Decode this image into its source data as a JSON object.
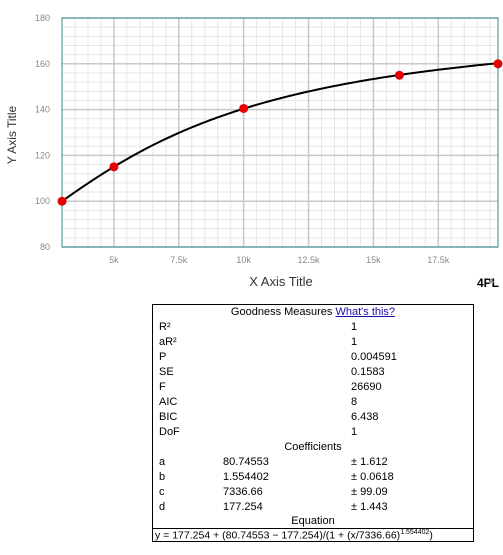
{
  "chart_data": {
    "type": "line",
    "title": "",
    "xlabel": "X Axis Title",
    "ylabel": "Y Axis Title",
    "xlim": [
      3000,
      19800
    ],
    "ylim": [
      80,
      180
    ],
    "xticks": [
      5000,
      7500,
      10000,
      12500,
      15000,
      17500
    ],
    "xtick_labels": [
      "5k",
      "7.5k",
      "10k",
      "12.5k",
      "15k",
      "17.5k"
    ],
    "yticks": [
      80,
      100,
      120,
      140,
      160,
      180
    ],
    "ytick_labels": [
      "80",
      "100",
      "120",
      "140",
      "160",
      "180"
    ],
    "grid": true,
    "model": "4PL",
    "params": {
      "a": 80.74553,
      "b": 1.554402,
      "c": 7336.66,
      "d": 177.254
    },
    "points": [
      {
        "x": 3000,
        "y": 100
      },
      {
        "x": 5000,
        "y": 115
      },
      {
        "x": 10000,
        "y": 140.5
      },
      {
        "x": 16000,
        "y": 155
      },
      {
        "x": 19800,
        "y": 160
      }
    ],
    "colors": {
      "line": "#000000",
      "point": "#e60000",
      "axis": "#2e8b8b",
      "grid_major": "#c8c8c8",
      "grid_minor": "#e6e6e6"
    }
  },
  "model_label": "4PL",
  "goodness": {
    "title": "Goodness Measures",
    "link": "What's this?",
    "rows": [
      {
        "k": "R²",
        "v": "1"
      },
      {
        "k": "aR²",
        "v": "1"
      },
      {
        "k": "P",
        "v": "0.004591"
      },
      {
        "k": "SE",
        "v": "0.1583"
      },
      {
        "k": "F",
        "v": "26690"
      },
      {
        "k": "AIC",
        "v": "8"
      },
      {
        "k": "BIC",
        "v": "6.438"
      },
      {
        "k": "DoF",
        "v": "1"
      }
    ],
    "coef_title": "Coefficients",
    "coefs": [
      {
        "k": "a",
        "v": "80.74553",
        "e": "± 1.612"
      },
      {
        "k": "b",
        "v": "1.554402",
        "e": "± 0.0618"
      },
      {
        "k": "c",
        "v": "7336.66",
        "e": "± 99.09"
      },
      {
        "k": "d",
        "v": "177.254",
        "e": "± 1.443"
      }
    ],
    "eq_title": "Equation",
    "equation": "y = 177.254 + (80.74553 − 177.254)/(1 + (x/7336.66)",
    "equation_exp": "1.554402",
    "equation_close": ")"
  },
  "scroll_icon": "up-triangle-icon"
}
